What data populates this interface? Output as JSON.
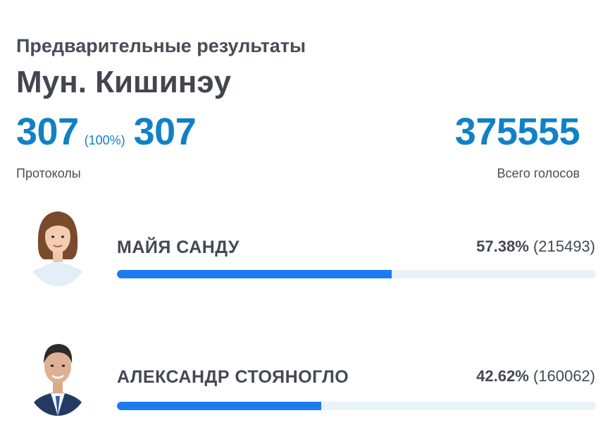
{
  "header": {
    "subtitle": "Предварительные результаты",
    "title": "Мун. Кишинэу"
  },
  "stats": {
    "protocols_counted": "307",
    "protocols_percent": "(100%)",
    "protocols_total": "307",
    "protocols_label": "Протоколы",
    "total_votes": "375555",
    "total_votes_label": "Всего голосов"
  },
  "candidates": [
    {
      "name": "МАЙЯ САНДУ",
      "percent": "57.38%",
      "votes": "(215493)",
      "share": 57.38
    },
    {
      "name": "АЛЕКСАНДР СТОЯНОГЛО",
      "percent": "42.62%",
      "votes": "(160062)",
      "share": 42.62
    }
  ],
  "colors": {
    "accent": "#1181c7",
    "bar_fill": "#1b7cf0",
    "bar_track": "#e9f1f9",
    "text": "#464853"
  }
}
